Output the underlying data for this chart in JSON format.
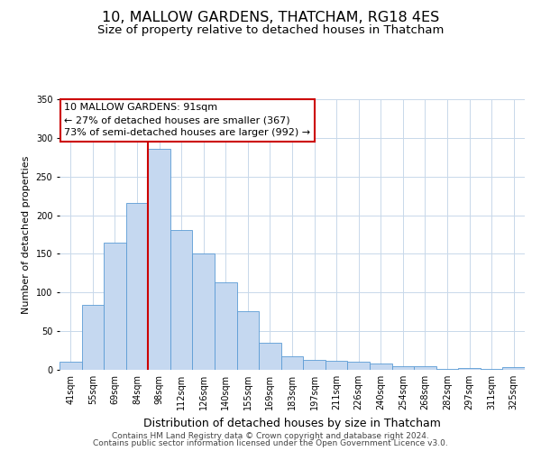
{
  "title": "10, MALLOW GARDENS, THATCHAM, RG18 4ES",
  "subtitle": "Size of property relative to detached houses in Thatcham",
  "xlabel": "Distribution of detached houses by size in Thatcham",
  "ylabel": "Number of detached properties",
  "bar_labels": [
    "41sqm",
    "55sqm",
    "69sqm",
    "84sqm",
    "98sqm",
    "112sqm",
    "126sqm",
    "140sqm",
    "155sqm",
    "169sqm",
    "183sqm",
    "197sqm",
    "211sqm",
    "226sqm",
    "240sqm",
    "254sqm",
    "268sqm",
    "282sqm",
    "297sqm",
    "311sqm",
    "325sqm"
  ],
  "bar_values": [
    10,
    84,
    164,
    216,
    286,
    181,
    150,
    113,
    76,
    35,
    17,
    13,
    12,
    11,
    8,
    5,
    5,
    1,
    2,
    1,
    3
  ],
  "bar_color": "#c5d8f0",
  "bar_edge_color": "#5b9bd5",
  "ylim": [
    0,
    350
  ],
  "yticks": [
    0,
    50,
    100,
    150,
    200,
    250,
    300,
    350
  ],
  "vline_x_idx": 4,
  "vline_color": "#cc0000",
  "annotation_title": "10 MALLOW GARDENS: 91sqm",
  "annotation_line1": "← 27% of detached houses are smaller (367)",
  "annotation_line2": "73% of semi-detached houses are larger (992) →",
  "annotation_box_color": "#ffffff",
  "annotation_box_edge": "#cc0000",
  "footer1": "Contains HM Land Registry data © Crown copyright and database right 2024.",
  "footer2": "Contains public sector information licensed under the Open Government Licence v3.0.",
  "background_color": "#ffffff",
  "grid_color": "#c8d8ea",
  "title_fontsize": 11.5,
  "subtitle_fontsize": 9.5,
  "xlabel_fontsize": 9,
  "ylabel_fontsize": 8,
  "footer_fontsize": 6.5,
  "annotation_fontsize": 8,
  "tick_fontsize": 7
}
